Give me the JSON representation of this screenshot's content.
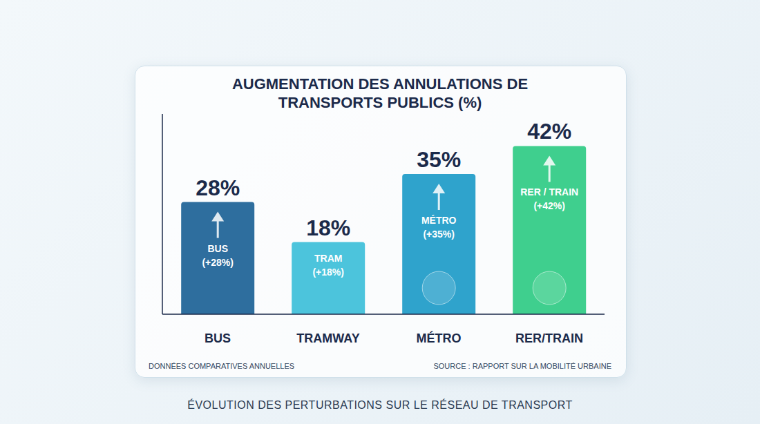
{
  "chart_data": {
    "type": "bar",
    "title": "AUGMENTATION DES ANNULATIONS DE TRANSPORTS PUBLICS (%)",
    "subtitle": "ÉVOLUTION DES PERTURBATIONS SUR LE RÉSEAU DE TRANSPORT",
    "categories": [
      "BUS",
      "TRAMWAY",
      "MÉTRO",
      "RER/TRAIN"
    ],
    "values": [
      28,
      18,
      35,
      42
    ],
    "value_labels": [
      "28%",
      "18%",
      "35%",
      "42%"
    ],
    "data_labels": true,
    "bar_labels": [
      "BUS (+28%)",
      "TRAM (+18%)",
      "MÉTRO (+35%)",
      "RER / TRAIN (+42%)"
    ],
    "colors": [
      "#2e6e9e",
      "#4cc4dc",
      "#2fa3cc",
      "#3fcf8e"
    ],
    "ylim": [
      0,
      50
    ],
    "tick_labels": "x",
    "grid": false,
    "notes": [
      "DONNÉES COMPARATIVES ANNUELLES"
    ],
    "source": "SOURCE : RAPPORT SUR LA MOBILITÉ URBAINE"
  }
}
